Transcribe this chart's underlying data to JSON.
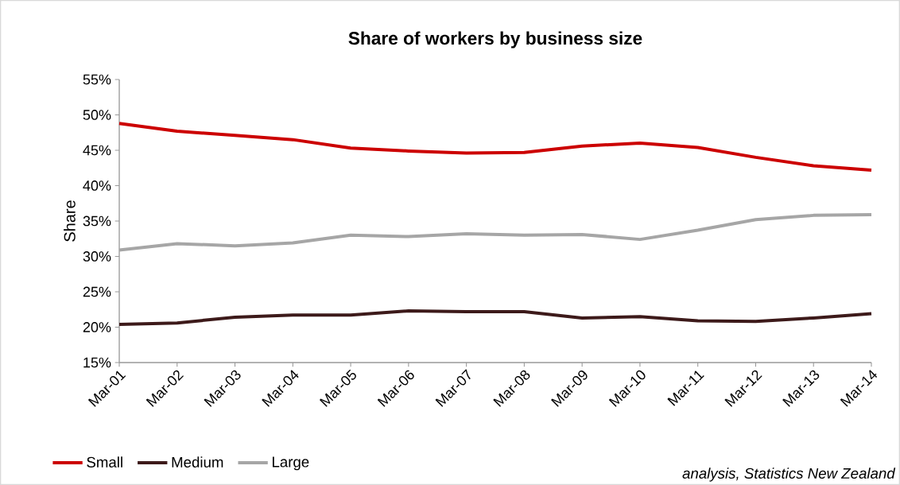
{
  "chart_data": {
    "type": "line",
    "title": "Share of workers by business size",
    "ylabel": "Share",
    "categories": [
      "Mar-01",
      "Mar-02",
      "Mar-03",
      "Mar-04",
      "Mar-05",
      "Mar-06",
      "Mar-07",
      "Mar-08",
      "Mar-09",
      "Mar-10",
      "Mar-11",
      "Mar-12",
      "Mar-13",
      "Mar-14"
    ],
    "series": [
      {
        "name": "Small",
        "color": "#cc0000",
        "values": [
          48.8,
          47.7,
          47.1,
          46.5,
          45.3,
          44.9,
          44.6,
          44.7,
          45.6,
          46.0,
          45.4,
          44.0,
          42.8,
          42.2
        ]
      },
      {
        "name": "Medium",
        "color": "#3d1a1a",
        "values": [
          20.4,
          20.6,
          21.4,
          21.7,
          21.7,
          22.3,
          22.2,
          22.2,
          21.3,
          21.5,
          20.9,
          20.8,
          21.3,
          21.9
        ]
      },
      {
        "name": "Large",
        "color": "#a6a6a6",
        "values": [
          30.9,
          31.8,
          31.5,
          31.9,
          33.0,
          32.8,
          33.2,
          33.0,
          33.1,
          32.4,
          33.7,
          35.2,
          35.8,
          35.9
        ]
      }
    ],
    "ylim": [
      15,
      55
    ],
    "yticks": [
      {
        "value": 15,
        "label": "15%"
      },
      {
        "value": 20,
        "label": "20%"
      },
      {
        "value": 25,
        "label": "25%"
      },
      {
        "value": 30,
        "label": "30%"
      },
      {
        "value": 35,
        "label": "35%"
      },
      {
        "value": 40,
        "label": "40%"
      },
      {
        "value": 45,
        "label": "45%"
      },
      {
        "value": 50,
        "label": "50%"
      },
      {
        "value": 55,
        "label": "55%"
      }
    ],
    "legend": "bottom left",
    "grid": false,
    "marker": "none",
    "line_style": "solid",
    "annotations": [
      "analysis, Statistics New Zealand"
    ]
  }
}
